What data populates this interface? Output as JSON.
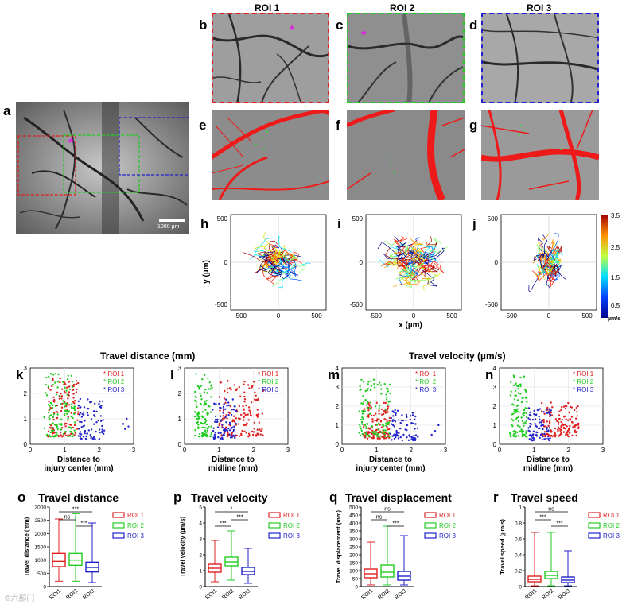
{
  "colors": {
    "roi1": "#e02020",
    "roi2": "#22cc22",
    "roi3": "#2222cc",
    "vessel": "#ee1a1a",
    "star": "#e020e0"
  },
  "panel_letters": {
    "a": "a",
    "b": "b",
    "c": "c",
    "d": "d",
    "e": "e",
    "f": "f",
    "g": "g",
    "h": "h",
    "i": "i",
    "j": "j",
    "k": "k",
    "l": "l",
    "m": "m",
    "n": "n",
    "o": "o",
    "p": "p",
    "q": "q",
    "r": "r"
  },
  "roi_titles": [
    "ROI 1",
    "ROI 2",
    "ROI 3"
  ],
  "scale_bar": "1000 µm",
  "star": "*",
  "group_titles": {
    "distance": "Travel distance (mm)",
    "velocity": "Travel velocity (µm/s)"
  },
  "track_axes": {
    "ticks": [
      "-500",
      "0",
      "500"
    ],
    "ylabel": "y (µm)",
    "xlabel": "x (µm)"
  },
  "colorbar": {
    "ticks": [
      "3.5",
      "2.5",
      "1.5",
      "0.5"
    ],
    "unit": "µm/s"
  },
  "scatter_common": {
    "xticks": [
      "0",
      "1",
      "2",
      "3"
    ],
    "legend": [
      "ROI 1",
      "ROI 2",
      "ROI 3"
    ],
    "legend_marker": "*"
  },
  "scatter_titles": {
    "k": [
      "Distance to",
      "injury center (mm)"
    ],
    "l": [
      "Distance to",
      "midline (mm)"
    ],
    "m": [
      "Distance to",
      "injury center (mm)"
    ],
    "n": [
      "Distance to",
      "midline (mm)"
    ]
  },
  "box_titles": {
    "o": "Travel distance",
    "p": "Travel velocity",
    "q": "Travel displacement",
    "r": "Travel speed"
  },
  "box_legend": [
    "ROI 1",
    "ROI 2",
    "ROI 3"
  ],
  "watermark": "©六部门",
  "chart_data": [
    {
      "type": "scatter",
      "id": "k",
      "xlabel": "Distance to injury center (mm)",
      "ylabel": "",
      "xlim": [
        0,
        3
      ],
      "ylim": [
        0,
        3
      ],
      "yticks": [
        0,
        1,
        2,
        3
      ],
      "series": [
        {
          "name": "ROI 1",
          "x_range": [
            0.5,
            1.4
          ],
          "y_range": [
            0.3,
            2.6
          ],
          "n": 120
        },
        {
          "name": "ROI 2",
          "x_range": [
            0.4,
            1.3
          ],
          "y_range": [
            0.3,
            2.8
          ],
          "n": 110
        },
        {
          "name": "ROI 3",
          "x_range": [
            1.4,
            2.2
          ],
          "y_range": [
            0.2,
            1.8
          ],
          "n": 80
        },
        {
          "name": "ROI 3 outliers",
          "x": [
            2.7,
            2.75,
            2.8,
            2.85
          ],
          "y": [
            0.8,
            0.6,
            1.0,
            0.7
          ]
        }
      ]
    },
    {
      "type": "scatter",
      "id": "l",
      "xlabel": "Distance to midline (mm)",
      "xlim": [
        0,
        3
      ],
      "ylim": [
        0,
        3
      ],
      "yticks": [
        0,
        1,
        2,
        3
      ],
      "series": [
        {
          "name": "ROI 1",
          "x_range": [
            1.0,
            2.3
          ],
          "y_range": [
            0.3,
            2.5
          ],
          "n": 140
        },
        {
          "name": "ROI 2",
          "x_range": [
            0.3,
            0.8
          ],
          "y_range": [
            0.3,
            2.8
          ],
          "n": 110
        },
        {
          "name": "ROI 3",
          "x_range": [
            0.8,
            1.5
          ],
          "y_range": [
            0.2,
            1.8
          ],
          "n": 80
        }
      ]
    },
    {
      "type": "scatter",
      "id": "m",
      "xlabel": "Distance to injury center (mm)",
      "xlim": [
        0,
        3
      ],
      "ylim": [
        0,
        4
      ],
      "yticks": [
        0,
        1,
        2,
        3,
        4
      ],
      "series": [
        {
          "name": "ROI 1",
          "x_range": [
            0.6,
            1.4
          ],
          "y_range": [
            0.3,
            2.2
          ],
          "n": 120
        },
        {
          "name": "ROI 2",
          "x_range": [
            0.5,
            1.4
          ],
          "y_range": [
            0.4,
            3.4
          ],
          "n": 110
        },
        {
          "name": "ROI 3",
          "x_range": [
            1.4,
            2.2
          ],
          "y_range": [
            0.2,
            1.8
          ],
          "n": 80
        },
        {
          "name": "ROI 3 outliers",
          "x": [
            2.6,
            2.7,
            2.8
          ],
          "y": [
            0.5,
            0.7,
            1.0
          ]
        }
      ]
    },
    {
      "type": "scatter",
      "id": "n",
      "xlabel": "Distance to midline (mm)",
      "xlim": [
        0,
        3
      ],
      "ylim": [
        0,
        4
      ],
      "yticks": [
        0,
        1,
        2,
        3,
        4
      ],
      "series": [
        {
          "name": "ROI 1",
          "x_range": [
            1.2,
            2.3
          ],
          "y_range": [
            0.4,
            2.2
          ],
          "n": 140
        },
        {
          "name": "ROI 2",
          "x_range": [
            0.3,
            0.8
          ],
          "y_range": [
            0.4,
            3.6
          ],
          "n": 110
        },
        {
          "name": "ROI 3",
          "x_range": [
            0.8,
            1.5
          ],
          "y_range": [
            0.2,
            2.0
          ],
          "n": 80
        }
      ]
    },
    {
      "type": "box",
      "id": "o",
      "title": "Travel distance",
      "ylabel": "Travel distance (mm)",
      "ylim": [
        0,
        3000
      ],
      "yticks": [
        0,
        500,
        1000,
        1500,
        2000,
        2500,
        3000
      ],
      "categories": [
        "ROI1",
        "ROI2",
        "ROI3"
      ],
      "boxes": [
        {
          "name": "ROI 1",
          "min": 200,
          "q1": 750,
          "median": 950,
          "q3": 1250,
          "max": 2550
        },
        {
          "name": "ROI 2",
          "min": 200,
          "q1": 800,
          "median": 1000,
          "q3": 1250,
          "max": 2750
        },
        {
          "name": "ROI 3",
          "min": 150,
          "q1": 550,
          "median": 720,
          "q3": 920,
          "max": 2400
        }
      ],
      "significance": [
        {
          "pair": "ROI1-ROI3",
          "label": "***"
        },
        {
          "pair": "ROI1-ROI2",
          "label": "ns"
        },
        {
          "pair": "ROI2-ROI3",
          "label": "***"
        }
      ]
    },
    {
      "type": "box",
      "id": "p",
      "title": "Travel velocity",
      "ylabel": "Travel velocity (µm/s)",
      "ylim": [
        0,
        5
      ],
      "yticks": [
        0,
        1,
        2,
        3,
        4,
        5
      ],
      "categories": [
        "ROI1",
        "ROI2",
        "ROI3"
      ],
      "boxes": [
        {
          "name": "ROI 1",
          "min": 0.3,
          "q1": 0.9,
          "median": 1.15,
          "q3": 1.4,
          "max": 2.9
        },
        {
          "name": "ROI 2",
          "min": 0.4,
          "q1": 1.3,
          "median": 1.55,
          "q3": 1.85,
          "max": 3.5
        },
        {
          "name": "ROI 3",
          "min": 0.2,
          "q1": 0.75,
          "median": 0.95,
          "q3": 1.2,
          "max": 2.4
        }
      ],
      "significance": [
        {
          "pair": "ROI1-ROI3",
          "label": "*"
        },
        {
          "pair": "ROI2-ROI3",
          "label": "***"
        },
        {
          "pair": "ROI1-ROI2",
          "label": "***"
        }
      ]
    },
    {
      "type": "box",
      "id": "q",
      "title": "Travel displacement",
      "ylabel": "Travel displacement (mm)",
      "ylim": [
        0,
        500
      ],
      "yticks": [
        0,
        50,
        100,
        150,
        200,
        250,
        300,
        350,
        400,
        450,
        500
      ],
      "categories": [
        "ROI1",
        "ROI2",
        "ROI3"
      ],
      "boxes": [
        {
          "name": "ROI 1",
          "min": 10,
          "q1": 55,
          "median": 80,
          "q3": 110,
          "max": 280
        },
        {
          "name": "ROI 2",
          "min": 10,
          "q1": 60,
          "median": 90,
          "q3": 135,
          "max": 380
        },
        {
          "name": "ROI 3",
          "min": 10,
          "q1": 40,
          "median": 65,
          "q3": 95,
          "max": 320
        }
      ],
      "significance": [
        {
          "pair": "ROI1-ROI3",
          "label": "ns"
        },
        {
          "pair": "ROI1-ROI2",
          "label": "ns"
        },
        {
          "pair": "ROI2-ROI3",
          "label": "***"
        }
      ]
    },
    {
      "type": "box",
      "id": "r",
      "title": "Travel speed",
      "ylabel": "Travel speed (µm/s)",
      "ylim": [
        0,
        1.0
      ],
      "yticks": [
        0,
        0.2,
        0.4,
        0.6,
        0.8,
        1.0
      ],
      "categories": [
        "ROI1",
        "ROI2",
        "ROI3"
      ],
      "boxes": [
        {
          "name": "ROI 1",
          "min": 0.01,
          "q1": 0.06,
          "median": 0.09,
          "q3": 0.13,
          "max": 0.68
        },
        {
          "name": "ROI 2",
          "min": 0.01,
          "q1": 0.1,
          "median": 0.14,
          "q3": 0.19,
          "max": 0.68
        },
        {
          "name": "ROI 3",
          "min": 0.01,
          "q1": 0.05,
          "median": 0.08,
          "q3": 0.12,
          "max": 0.45
        }
      ],
      "significance": [
        {
          "pair": "ROI1-ROI3",
          "label": "ns"
        },
        {
          "pair": "ROI1-ROI2",
          "label": "***"
        },
        {
          "pair": "ROI2-ROI3",
          "label": "***"
        }
      ]
    }
  ]
}
